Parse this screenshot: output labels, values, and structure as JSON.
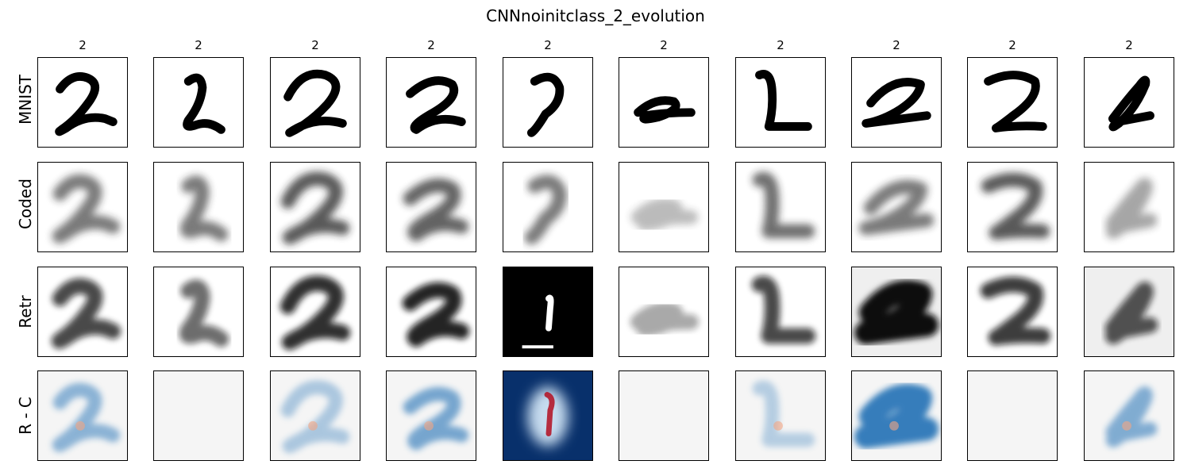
{
  "title": "CNNnoinitclass_2_evolution",
  "column_labels": [
    "2",
    "2",
    "2",
    "2",
    "2",
    "2",
    "2",
    "2",
    "2",
    "2"
  ],
  "row_labels": [
    "MNIST",
    "Coded",
    "Retr",
    "R - C"
  ],
  "colors": {
    "ink": "#000000",
    "diff_neutral": "#f5f5f5",
    "diff_blue": "#08306b",
    "diff_red": "#b2182b"
  },
  "cells": {
    "mnist": [
      "digit-2",
      "digit-2",
      "digit-2",
      "digit-2",
      "digit-2",
      "digit-2",
      "digit-2",
      "digit-2",
      "digit-2",
      "digit-2"
    ],
    "coded": [
      "blurred-digit",
      "blurred-digit",
      "blurred-digit",
      "blurred-digit",
      "blurred-digit",
      "blurred-digit",
      "blurred-digit",
      "blurred-digit",
      "blurred-digit",
      "blurred-digit"
    ],
    "retr": [
      "blurred-digit",
      "blurred-digit",
      "blurred-digit",
      "blurred-digit",
      "inverted-digit",
      "blurred-digit",
      "blurred-digit",
      "blurred-digit",
      "blurred-digit",
      "blurred-digit"
    ],
    "diff": [
      "heatmap",
      "blank",
      "heatmap",
      "heatmap",
      "heatmap",
      "blank",
      "heatmap",
      "heatmap",
      "blank",
      "heatmap"
    ]
  }
}
